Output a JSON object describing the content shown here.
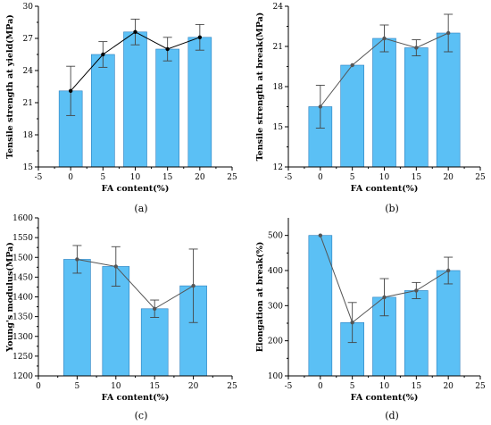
{
  "colors": {
    "bar_fill": "#5bc0f5",
    "bar_stroke": "#2a7fbf",
    "line_black": "#000000",
    "line_gray": "#555555"
  },
  "chart_data": [
    {
      "type": "bar",
      "panel_label": "(a)",
      "xlabel": "FA content(%)",
      "ylabel": "Tensile strength at yield(MPa)",
      "xlim": [
        -5,
        25
      ],
      "ylim": [
        15,
        30
      ],
      "xticks": [
        -5,
        0,
        5,
        10,
        15,
        20,
        25
      ],
      "yticks": [
        15,
        18,
        21,
        24,
        27,
        30
      ],
      "x": [
        0,
        5,
        10,
        15,
        20
      ],
      "values": [
        22.1,
        25.5,
        27.6,
        26.0,
        27.1
      ],
      "errors": [
        2.3,
        1.2,
        1.2,
        1.1,
        1.2
      ],
      "line_color": "#000000"
    },
    {
      "type": "bar",
      "panel_label": "(b)",
      "xlabel": "FA content(%)",
      "ylabel": "Tensile strength at break(MPa)",
      "xlim": [
        -5,
        25
      ],
      "ylim": [
        12,
        24
      ],
      "xticks": [
        -5,
        0,
        5,
        10,
        15,
        20,
        25
      ],
      "yticks": [
        12,
        15,
        18,
        21,
        24
      ],
      "x": [
        0,
        5,
        10,
        15,
        20
      ],
      "values": [
        16.5,
        19.6,
        21.6,
        20.9,
        22.0
      ],
      "errors": [
        1.6,
        0.0,
        1.0,
        0.6,
        1.4
      ],
      "line_color": "#555555"
    },
    {
      "type": "bar",
      "panel_label": "(c)",
      "xlabel": "FA content(%)",
      "ylabel": "Young's modulus(MPa)",
      "xlim": [
        0,
        25
      ],
      "ylim": [
        1200,
        1600
      ],
      "xticks": [
        0,
        5,
        10,
        15,
        20,
        25
      ],
      "yticks": [
        1200,
        1250,
        1300,
        1350,
        1400,
        1450,
        1500,
        1550,
        1600
      ],
      "x": [
        5,
        10,
        15,
        20
      ],
      "values": [
        1495,
        1477,
        1370,
        1428
      ],
      "errors": [
        35,
        50,
        22,
        93
      ],
      "line_color": "#555555"
    },
    {
      "type": "bar",
      "panel_label": "(d)",
      "xlabel": "FA content(%)",
      "ylabel": "Elongation at break(%)",
      "xlim": [
        -5,
        25
      ],
      "ylim": [
        100,
        550
      ],
      "xticks": [
        -5,
        0,
        5,
        10,
        15,
        20,
        25
      ],
      "yticks": [
        100,
        200,
        300,
        400,
        500
      ],
      "x": [
        0,
        5,
        10,
        15,
        20
      ],
      "values": [
        500,
        252,
        324,
        343,
        400
      ],
      "errors": [
        0,
        57,
        53,
        23,
        38
      ],
      "line_color": "#555555"
    }
  ]
}
